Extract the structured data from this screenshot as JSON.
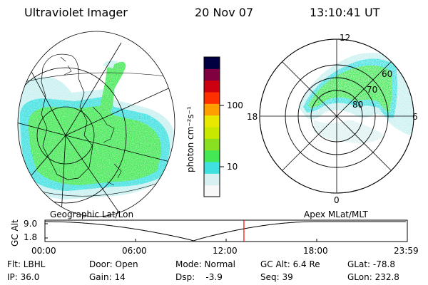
{
  "header": {
    "instrument": "Ultraviolet Imager",
    "date": "20 Nov 07",
    "time": "13:10:41 UT"
  },
  "colorbar": {
    "unit_label": "photon cm⁻²s⁻¹",
    "ticks": [
      "100",
      "10"
    ],
    "scale": "log",
    "colors": [
      "#f8f8f8",
      "#d8f0f0",
      "#40e0e0",
      "#44e855",
      "#88e020",
      "#c8e800",
      "#e8e800",
      "#ffa000",
      "#ff3000",
      "#cc0010",
      "#800040",
      "#000040"
    ]
  },
  "left_map": {
    "label": "Geographic Lat/Lon"
  },
  "right_map": {
    "label": "Apex MLat/MLT",
    "mlt_labels": {
      "top": "12",
      "left": "18",
      "right": "6",
      "bottom": "0"
    },
    "lat_labels": [
      "60",
      "70",
      "80"
    ]
  },
  "altitude_plot": {
    "ylabel": "GC Alt",
    "y_ticks": [
      "9.0",
      "1.8"
    ],
    "x_ticks": [
      "00:00",
      "06:00",
      "12:00",
      "18:00",
      "23:59"
    ],
    "current_time_marker": "13:10:41",
    "marker_color": "#ff0000"
  },
  "status": {
    "col1": [
      "Flt: LBHL",
      "IP: 36.0"
    ],
    "col2": [
      "Door: Open",
      "Gain: 14"
    ],
    "col3": [
      "Mode: Normal",
      "Dsp:    -3.9"
    ],
    "col4": [
      "GC Alt: 6.4 Re",
      "Seq: 39"
    ],
    "col5": [
      "GLat: -78.8",
      "GLon: 232.8"
    ]
  },
  "colors": {
    "aurora_green": "#44e855",
    "aurora_cyan": "#40e0e0",
    "aurora_lightcyan": "#c8f0f0"
  }
}
